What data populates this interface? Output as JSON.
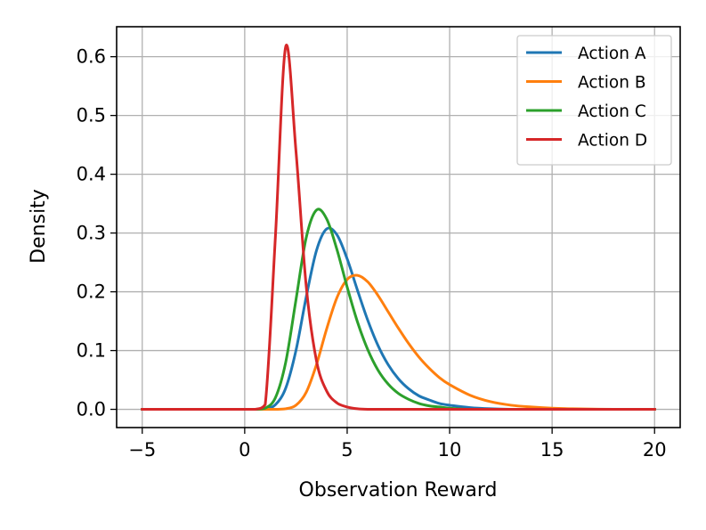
{
  "chart_data": {
    "type": "line",
    "title": "",
    "xlabel": "Observation Reward",
    "ylabel": "Density",
    "xlim": [
      -6.25,
      21.25
    ],
    "ylim": [
      -0.031,
      0.651
    ],
    "xticks": [
      -5,
      0,
      5,
      10,
      15,
      20
    ],
    "xtick_labels": [
      "−5",
      "0",
      "5",
      "10",
      "15",
      "20"
    ],
    "yticks": [
      0.0,
      0.1,
      0.2,
      0.3,
      0.4,
      0.5,
      0.6
    ],
    "ytick_labels": [
      "0.0",
      "0.1",
      "0.2",
      "0.3",
      "0.4",
      "0.5",
      "0.6"
    ],
    "grid": true,
    "legend_position": "top-right",
    "x": [
      -5,
      0,
      0.5,
      1,
      1.5,
      2,
      2.5,
      3,
      3.5,
      4,
      4.5,
      5,
      5.5,
      6,
      6.5,
      7,
      7.5,
      8,
      8.5,
      9,
      9.5,
      10,
      11,
      12,
      13,
      14,
      15,
      16,
      18,
      20
    ],
    "series": [
      {
        "name": "Action A",
        "color": "#1f77b4",
        "values": [
          0,
          0,
          0,
          0.001,
          0.008,
          0.036,
          0.1,
          0.191,
          0.27,
          0.307,
          0.297,
          0.256,
          0.203,
          0.152,
          0.109,
          0.076,
          0.052,
          0.035,
          0.023,
          0.016,
          0.01,
          0.007,
          0.003,
          0.001,
          0,
          0,
          0,
          0,
          0,
          0
        ]
      },
      {
        "name": "Action B",
        "color": "#ff7f0e",
        "values": [
          0,
          0,
          0,
          0,
          0,
          0.001,
          0.007,
          0.029,
          0.076,
          0.137,
          0.19,
          0.221,
          0.228,
          0.217,
          0.194,
          0.166,
          0.138,
          0.112,
          0.089,
          0.07,
          0.054,
          0.042,
          0.024,
          0.013,
          0.007,
          0.004,
          0.002,
          0.001,
          0,
          0
        ]
      },
      {
        "name": "Action C",
        "color": "#2ca02c",
        "values": [
          0,
          0,
          0,
          0.002,
          0.02,
          0.08,
          0.186,
          0.292,
          0.339,
          0.324,
          0.272,
          0.208,
          0.149,
          0.102,
          0.067,
          0.043,
          0.027,
          0.017,
          0.01,
          0.006,
          0.004,
          0.002,
          0,
          0,
          0,
          0,
          0,
          0,
          0,
          0
        ]
      },
      {
        "name": "Action D",
        "color": "#d62728",
        "values": [
          0,
          0,
          0,
          0.008,
          0.295,
          0.617,
          0.44,
          0.21,
          0.083,
          0.031,
          0.011,
          0.004,
          0.001,
          0,
          0,
          0,
          0,
          0,
          0,
          0,
          0,
          0,
          0,
          0,
          0,
          0,
          0,
          0,
          0,
          0
        ]
      }
    ]
  }
}
